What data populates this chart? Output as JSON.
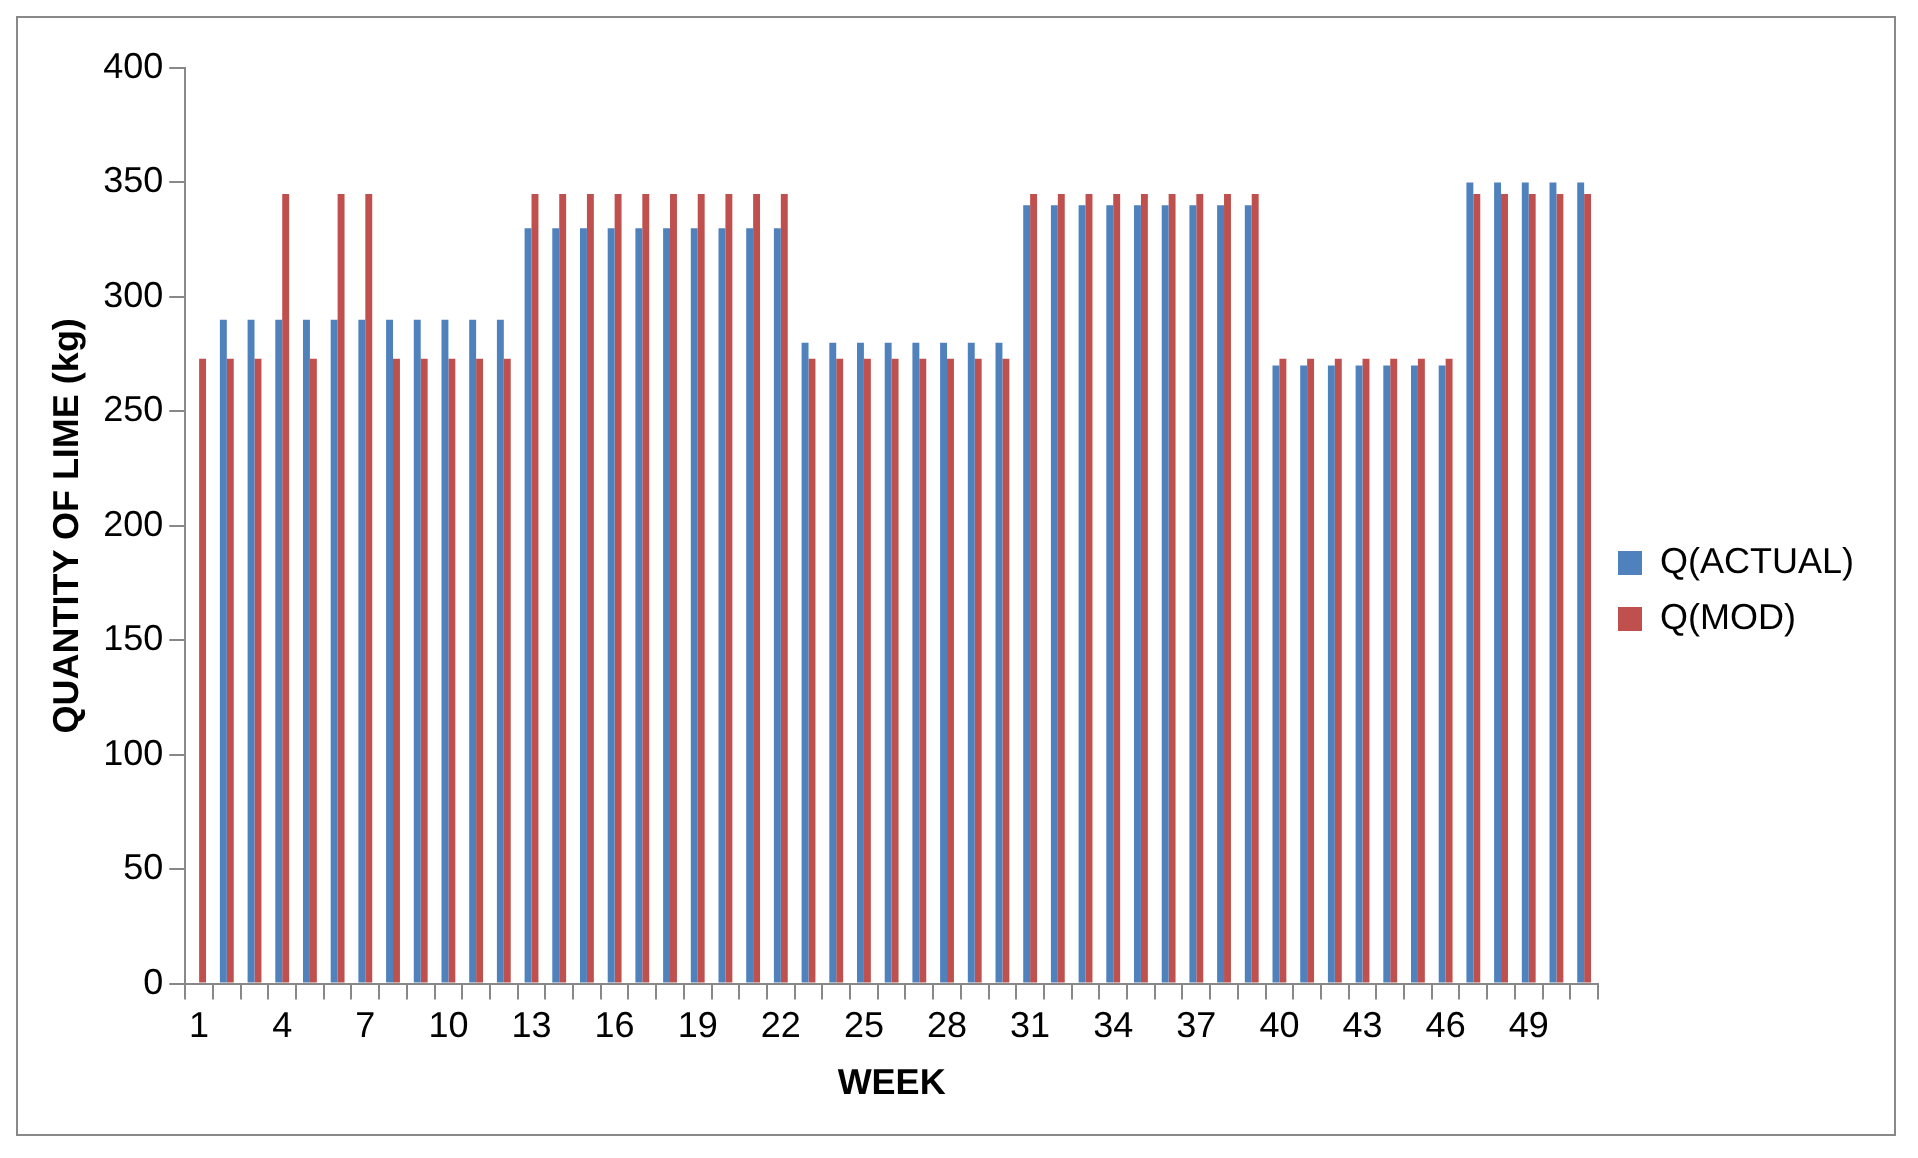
{
  "chart_data": {
    "type": "bar",
    "xlabel": "WEEK",
    "ylabel": "QUANTITY OF LIME (kg)",
    "categories": [
      "1",
      null,
      null,
      "4",
      null,
      null,
      "7",
      null,
      null,
      "10",
      null,
      null,
      "13",
      null,
      null,
      "16",
      null,
      null,
      "19",
      null,
      null,
      "22",
      null,
      null,
      "25",
      null,
      null,
      "28",
      null,
      null,
      "31",
      null,
      null,
      "34",
      null,
      null,
      "37",
      null,
      null,
      "40",
      null,
      null,
      "43",
      null,
      null,
      "46",
      null,
      null,
      "49",
      null,
      null
    ],
    "series": [
      {
        "name": "Q(ACTUAL)",
        "color": "#4f81bd",
        "values": [
          null,
          290,
          290,
          290,
          290,
          290,
          290,
          290,
          290,
          290,
          290,
          290,
          330,
          330,
          330,
          330,
          330,
          330,
          330,
          330,
          330,
          330,
          280,
          280,
          280,
          280,
          280,
          280,
          280,
          280,
          340,
          340,
          340,
          340,
          340,
          340,
          340,
          340,
          340,
          270,
          270,
          270,
          270,
          270,
          270,
          270,
          350,
          350,
          350,
          350,
          350
        ]
      },
      {
        "name": "Q(MOD)",
        "color": "#c0504d",
        "values": [
          273,
          273,
          273,
          345,
          273,
          345,
          345,
          273,
          273,
          273,
          273,
          273,
          345,
          345,
          345,
          345,
          345,
          345,
          345,
          345,
          345,
          345,
          273,
          273,
          273,
          273,
          273,
          273,
          273,
          273,
          345,
          345,
          345,
          345,
          345,
          345,
          345,
          345,
          345,
          273,
          273,
          273,
          273,
          273,
          273,
          273,
          345,
          345,
          345,
          345,
          345
        ]
      }
    ],
    "ylim": [
      0,
      400
    ],
    "yticks": [
      0,
      50,
      100,
      150,
      200,
      250,
      300,
      350,
      400
    ],
    "grid": false,
    "legend": "right"
  }
}
